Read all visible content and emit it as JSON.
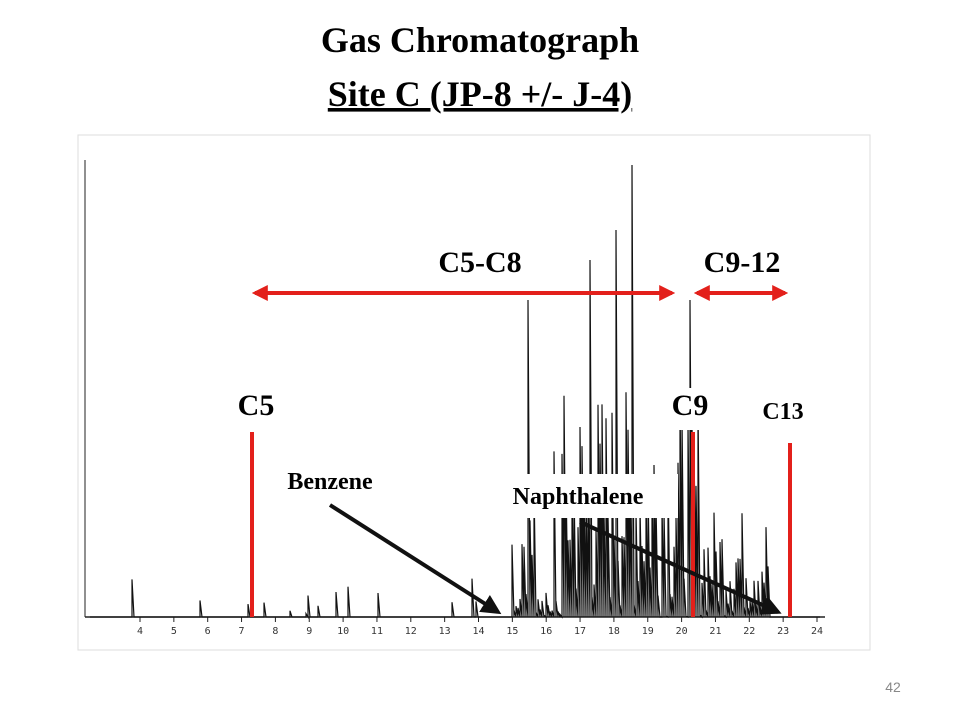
{
  "header": {
    "title": "Gas Chromatograph",
    "subtitle": "Site C (JP-8 +/- J-4)"
  },
  "chromatogram": {
    "x_ticks": [
      4,
      5,
      6,
      7,
      8,
      9,
      10,
      11,
      12,
      13,
      14,
      15,
      16,
      17,
      18,
      19,
      20,
      21,
      22,
      23,
      24
    ]
  },
  "annotations": {
    "range_light": "C5-C8",
    "range_heavy": "C9-12",
    "marker_c5": "C5",
    "marker_c9": "C9",
    "marker_c13": "C13",
    "benzene": "Benzene",
    "naphthalene": "Naphthalene"
  },
  "page_number": "42"
}
